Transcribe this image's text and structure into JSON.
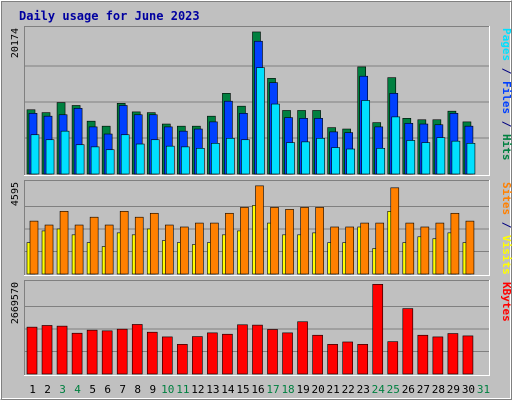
{
  "chart_data": {
    "type": "bar",
    "title": "Daily usage for June 2023",
    "categories": [
      "1",
      "2",
      "3",
      "4",
      "5",
      "6",
      "7",
      "8",
      "9",
      "10",
      "11",
      "12",
      "13",
      "14",
      "15",
      "16",
      "17",
      "18",
      "19",
      "20",
      "21",
      "22",
      "23",
      "24",
      "25",
      "26",
      "27",
      "28",
      "29",
      "30",
      "31"
    ],
    "weekend_days": [
      "3",
      "4",
      "10",
      "11",
      "17",
      "18",
      "24",
      "25",
      "31"
    ],
    "panels": [
      {
        "id": "hits-files-pages",
        "ymax": 20174,
        "ymax_label": "20174",
        "right_label": [
          {
            "text": "Pages",
            "color": "#00e0ff"
          },
          {
            "text": " / ",
            "color": "#000080"
          },
          {
            "text": "Files",
            "color": "#0040ff"
          },
          {
            "text": " / ",
            "color": "#000080"
          },
          {
            "text": "Hits",
            "color": "#008040"
          }
        ],
        "series": [
          {
            "name": "Hits",
            "color": "#008040",
            "values": [
              9000,
              8600,
              10000,
              9600,
              7400,
              6700,
              9900,
              8700,
              8600,
              7000,
              6700,
              6700,
              8100,
              11300,
              9500,
              19900,
              13400,
              8900,
              8900,
              8900,
              6500,
              6300,
              15000,
              7200,
              13500,
              7800,
              7600,
              7600,
              8800,
              7300,
              0
            ]
          },
          {
            "name": "Files",
            "color": "#0040ff",
            "values": [
              8500,
              8100,
              8300,
              9200,
              6600,
              5600,
              9600,
              8300,
              8300,
              6600,
              6000,
              6300,
              7300,
              10200,
              8500,
              18600,
              12800,
              7900,
              7800,
              7800,
              5900,
              5800,
              13700,
              6600,
              11300,
              7100,
              7000,
              6900,
              8500,
              6700,
              0
            ]
          },
          {
            "name": "Pages",
            "color": "#00e0ff",
            "values": [
              5500,
              4800,
              6000,
              4100,
              3800,
              3400,
              5500,
              4200,
              4800,
              3900,
              3800,
              3600,
              4300,
              5000,
              4800,
              14900,
              9800,
              4400,
              4500,
              5000,
              3700,
              3500,
              10300,
              3600,
              8000,
              4700,
              4400,
              5100,
              4600,
              4300,
              0
            ]
          }
        ]
      },
      {
        "id": "visits-sites",
        "ymax": 4595,
        "ymax_label": "4595",
        "right_label": [
          {
            "text": "Sites",
            "color": "#ff8000"
          },
          {
            "text": " / ",
            "color": "#000080"
          },
          {
            "text": "Visits",
            "color": "#ffff00"
          }
        ],
        "series": [
          {
            "name": "Visits",
            "color": "#ffff00",
            "values": [
              1600,
              2200,
              2300,
              2000,
              1600,
              1400,
              2100,
              2000,
              2300,
              1700,
              1600,
              1500,
              1600,
              2000,
              2200,
              3500,
              2600,
              2000,
              2000,
              2100,
              1600,
              1600,
              2400,
              1300,
              3200,
              1600,
              1900,
              1800,
              2100,
              1600,
              0
            ]
          },
          {
            "name": "Sites",
            "color": "#ff8000",
            "values": [
              2700,
              2500,
              3200,
              2500,
              2900,
              2500,
              3200,
              2900,
              3100,
              2500,
              2400,
              2600,
              2600,
              3100,
              3400,
              4500,
              3400,
              3300,
              3400,
              3400,
              2400,
              2400,
              2600,
              2600,
              4400,
              2600,
              2400,
              2600,
              3100,
              2700,
              0
            ]
          }
        ]
      },
      {
        "id": "kbytes",
        "ymax": 2669570,
        "ymax_label": "2669570",
        "right_label": [
          {
            "text": "KBytes",
            "color": "#ff0000"
          }
        ],
        "series": [
          {
            "name": "KBytes",
            "color": "#ff0000",
            "values": [
              1390000,
              1440000,
              1420000,
              1210000,
              1300000,
              1280000,
              1330000,
              1470000,
              1240000,
              1100000,
              880000,
              1110000,
              1220000,
              1180000,
              1460000,
              1450000,
              1320000,
              1220000,
              1550000,
              1150000,
              880000,
              950000,
              880000,
              2660000,
              960000,
              1940000,
              1150000,
              1100000,
              1200000,
              1130000,
              0
            ]
          }
        ]
      }
    ]
  }
}
